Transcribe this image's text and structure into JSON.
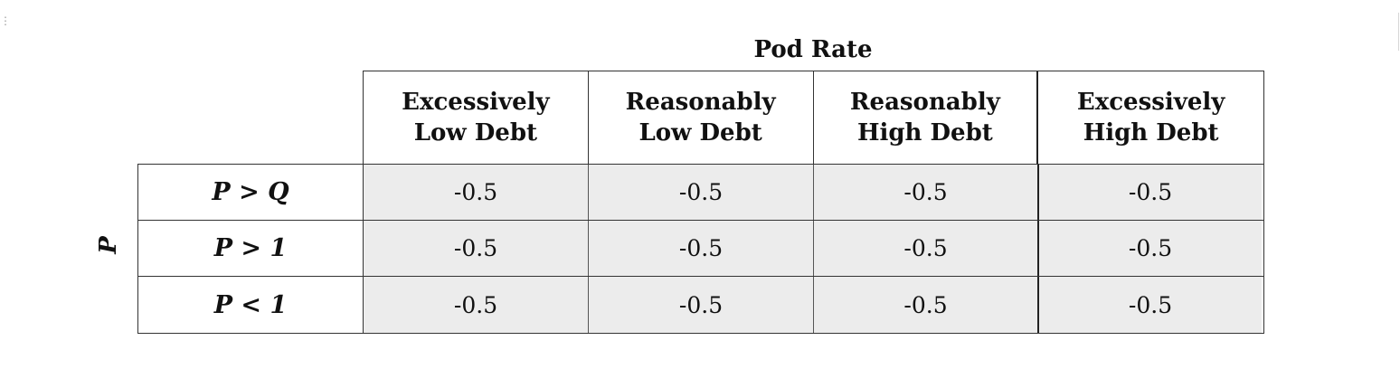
{
  "column_axis_title": "Pod Rate",
  "row_axis_title": "P",
  "columns": [
    "Excessively\nLow Debt",
    "Reasonably\nLow Debt",
    "Reasonably\nHigh Debt",
    "Excessively\nHigh Debt"
  ],
  "rows": [
    {
      "label": "P > Q",
      "values": [
        "-0.5",
        "-0.5",
        "-0.5",
        "-0.5"
      ]
    },
    {
      "label": "P > 1",
      "values": [
        "-0.5",
        "-0.5",
        "-0.5",
        "-0.5"
      ]
    },
    {
      "label": "P < 1",
      "values": [
        "-0.5",
        "-0.5",
        "-0.5",
        "-0.5"
      ]
    }
  ],
  "colors": {
    "cell_fill": "#ececec",
    "border": "#333333"
  }
}
